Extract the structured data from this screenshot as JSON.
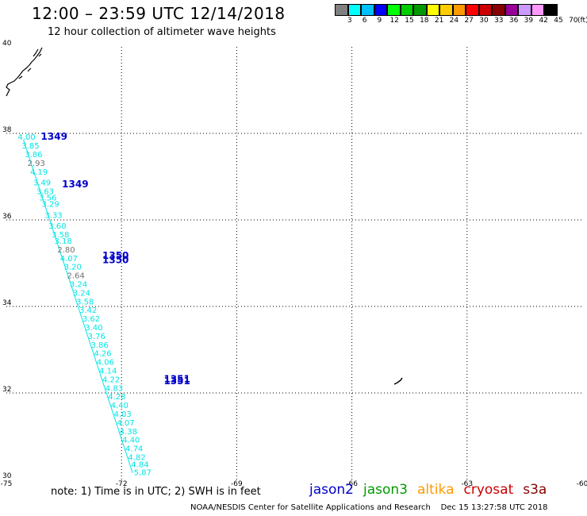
{
  "header": {
    "title": "12:00 – 23:59 UTC 12/14/2018",
    "subtitle": "12 hour collection of altimeter wave heights"
  },
  "colorbar": {
    "unit": "(ft)",
    "colors": [
      "#808080",
      "#00ffff",
      "#00c0ff",
      "#0000ff",
      "#00ff00",
      "#00cc00",
      "#009900",
      "#ffff00",
      "#ffcc00",
      "#ff9900",
      "#ff0000",
      "#cc0000",
      "#880000",
      "#990099",
      "#cc99ff",
      "#ff99ff",
      "#000000"
    ],
    "labels": [
      "3",
      "6",
      "9",
      "12",
      "15",
      "18",
      "21",
      "24",
      "27",
      "30",
      "33",
      "36",
      "39",
      "42",
      "45",
      "70"
    ]
  },
  "map": {
    "lon_range": [
      -75,
      -60
    ],
    "lat_range": [
      30,
      40
    ],
    "lon_ticks": [
      -75,
      -72,
      -69,
      -66,
      -63,
      -60
    ],
    "lat_ticks": [
      30,
      32,
      34,
      36,
      38,
      40
    ],
    "grid": true,
    "track_start": [
      -74.72,
      37.85
    ],
    "track_end": [
      -72.0,
      30.15
    ]
  },
  "swh_labels": [
    {
      "text": "4.00",
      "lon": -74.7,
      "lat": 37.85,
      "gray": false
    },
    {
      "text": "3.85",
      "lon": -74.6,
      "lat": 37.65,
      "gray": false
    },
    {
      "text": "3.86",
      "lon": -74.52,
      "lat": 37.45,
      "gray": false
    },
    {
      "text": "2.93",
      "lon": -74.45,
      "lat": 37.25,
      "gray": true
    },
    {
      "text": "4.19",
      "lon": -74.38,
      "lat": 37.05,
      "gray": false
    },
    {
      "text": "3.49",
      "lon": -74.3,
      "lat": 36.8,
      "gray": false
    },
    {
      "text": "3.63",
      "lon": -74.22,
      "lat": 36.6,
      "gray": false
    },
    {
      "text": "3.56",
      "lon": -74.15,
      "lat": 36.45,
      "gray": false
    },
    {
      "text": "3.29",
      "lon": -74.08,
      "lat": 36.3,
      "gray": false
    },
    {
      "text": "3.33",
      "lon": -74.0,
      "lat": 36.05,
      "gray": false
    },
    {
      "text": "3.60",
      "lon": -73.9,
      "lat": 35.8,
      "gray": false
    },
    {
      "text": "3.58",
      "lon": -73.82,
      "lat": 35.6,
      "gray": false
    },
    {
      "text": "3.18",
      "lon": -73.75,
      "lat": 35.45,
      "gray": false
    },
    {
      "text": "2.80",
      "lon": -73.67,
      "lat": 35.25,
      "gray": true
    },
    {
      "text": "4.07",
      "lon": -73.6,
      "lat": 35.05,
      "gray": false
    },
    {
      "text": "3.20",
      "lon": -73.5,
      "lat": 34.85,
      "gray": false
    },
    {
      "text": "2.64",
      "lon": -73.42,
      "lat": 34.65,
      "gray": true
    },
    {
      "text": "3.24",
      "lon": -73.35,
      "lat": 34.45,
      "gray": false
    },
    {
      "text": "3.24",
      "lon": -73.27,
      "lat": 34.25,
      "gray": false
    },
    {
      "text": "3.58",
      "lon": -73.18,
      "lat": 34.05,
      "gray": false
    },
    {
      "text": "3.42",
      "lon": -73.1,
      "lat": 33.85,
      "gray": false
    },
    {
      "text": "3.62",
      "lon": -73.02,
      "lat": 33.65,
      "gray": false
    },
    {
      "text": "3.40",
      "lon": -72.95,
      "lat": 33.45,
      "gray": false
    },
    {
      "text": "3.76",
      "lon": -72.88,
      "lat": 33.25,
      "gray": false
    },
    {
      "text": "3.86",
      "lon": -72.8,
      "lat": 33.05,
      "gray": false
    },
    {
      "text": "4.26",
      "lon": -72.72,
      "lat": 32.85,
      "gray": false
    },
    {
      "text": "4.06",
      "lon": -72.65,
      "lat": 32.65,
      "gray": false
    },
    {
      "text": "4.14",
      "lon": -72.58,
      "lat": 32.45,
      "gray": false
    },
    {
      "text": "4.22",
      "lon": -72.5,
      "lat": 32.25,
      "gray": false
    },
    {
      "text": "4.83",
      "lon": -72.42,
      "lat": 32.05,
      "gray": false
    },
    {
      "text": "4.28",
      "lon": -72.35,
      "lat": 31.85,
      "gray": false
    },
    {
      "text": "4.40",
      "lon": -72.28,
      "lat": 31.65,
      "gray": false
    },
    {
      "text": "4.03",
      "lon": -72.2,
      "lat": 31.45,
      "gray": false
    },
    {
      "text": "4.07",
      "lon": -72.12,
      "lat": 31.25,
      "gray": false
    },
    {
      "text": "4.38",
      "lon": -72.05,
      "lat": 31.05,
      "gray": false
    },
    {
      "text": "4.40",
      "lon": -71.98,
      "lat": 30.85,
      "gray": false
    },
    {
      "text": "4.74",
      "lon": -71.9,
      "lat": 30.65,
      "gray": false
    },
    {
      "text": "4.82",
      "lon": -71.83,
      "lat": 30.45,
      "gray": false
    },
    {
      "text": "4.84",
      "lon": -71.75,
      "lat": 30.28,
      "gray": false
    },
    {
      "text": "5.87",
      "lon": -71.68,
      "lat": 30.1,
      "gray": false
    }
  ],
  "orbit_labels": [
    {
      "text": "1349",
      "lon": -74.1,
      "lat": 37.85
    },
    {
      "text": "1349",
      "lon": -73.55,
      "lat": 36.75
    },
    {
      "text": "1350",
      "lon": -72.5,
      "lat": 35.1
    },
    {
      "text": "1350",
      "lon": -72.5,
      "lat": 35.0
    },
    {
      "text": "1351",
      "lon": -70.9,
      "lat": 32.25
    },
    {
      "text": "1351",
      "lon": -70.9,
      "lat": 32.2
    }
  ],
  "footer": {
    "note": "note:  1) Time is in UTC;  2) SWH is in feet",
    "satellites": [
      {
        "name": "jason2",
        "color": "#0000cc"
      },
      {
        "name": "jason3",
        "color": "#009900"
      },
      {
        "name": "altika",
        "color": "#ff9900"
      },
      {
        "name": "cryosat",
        "color": "#cc0000"
      },
      {
        "name": "s3a",
        "color": "#880000"
      }
    ],
    "credit": "NOAA/NESDIS Center for Satellite Applications and Research    Dec 15 13:27:58 UTC 2018"
  }
}
